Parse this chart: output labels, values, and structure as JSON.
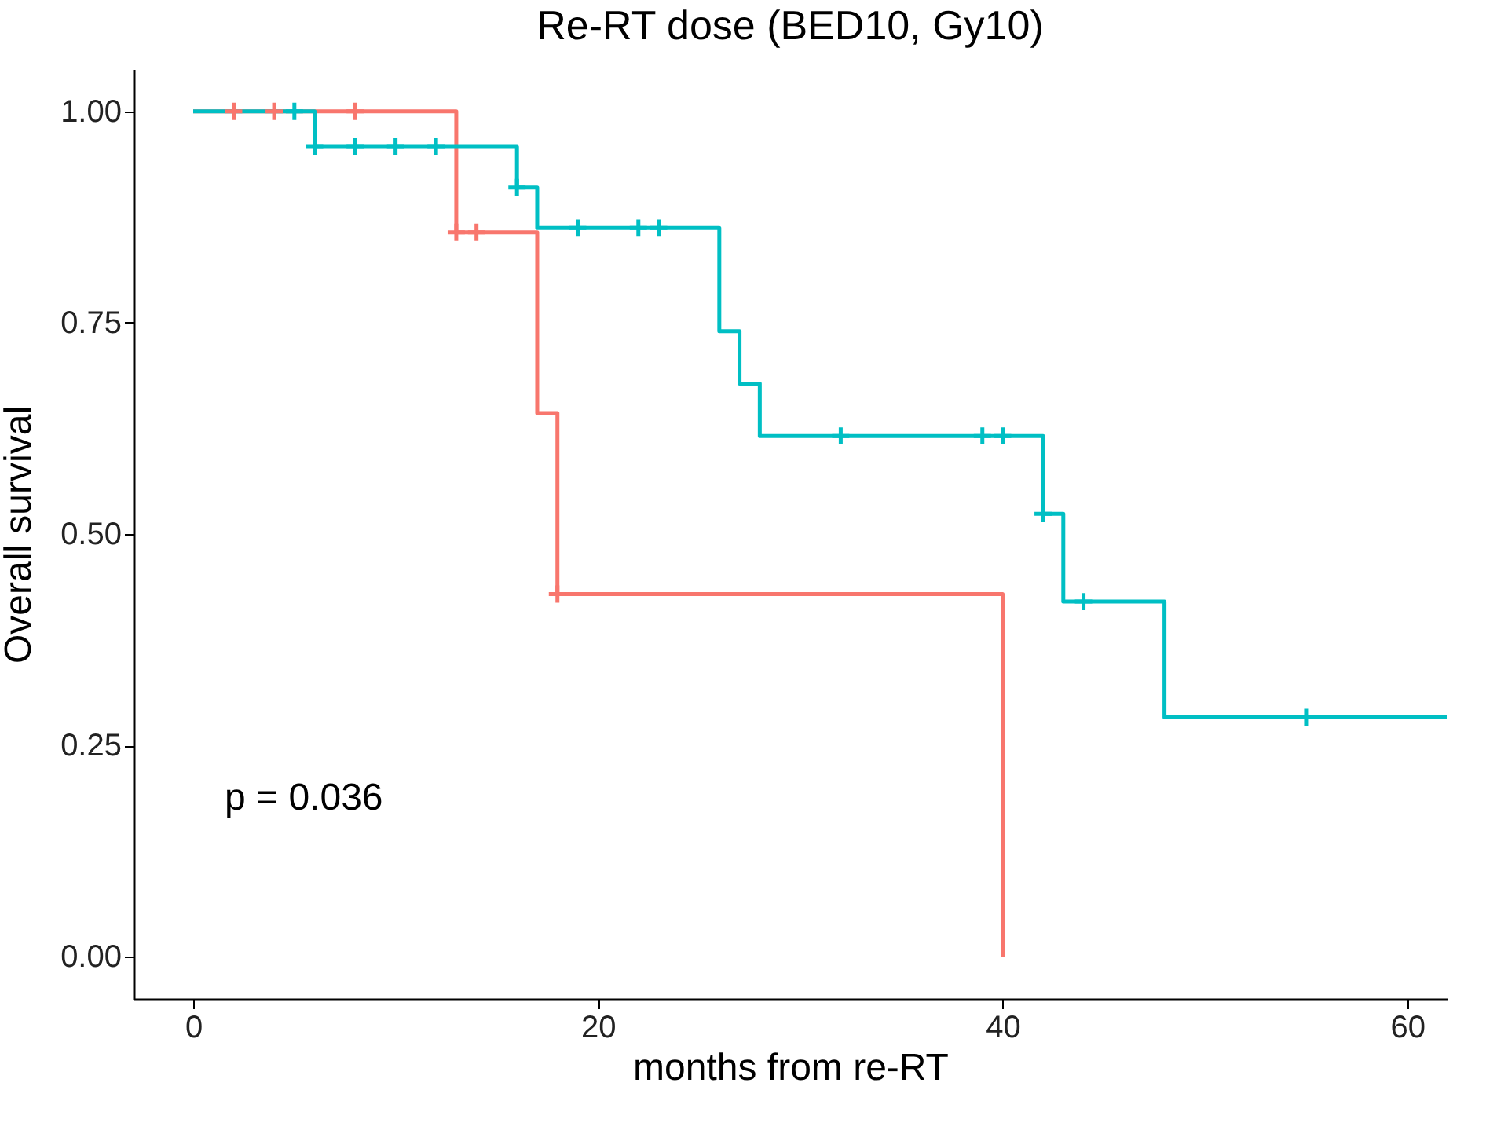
{
  "chart_data": {
    "type": "step",
    "title": "Re-RT dose (BED10, Gy10)",
    "xlabel": "months from re-RT",
    "ylabel": "Overall survival",
    "xlim": [
      -2.95,
      61.95
    ],
    "xticks": [
      0,
      20,
      40,
      60
    ],
    "ylim": [
      -0.05,
      1.05
    ],
    "yticks": [
      {
        "value": 0,
        "label": "0.00"
      },
      {
        "value": 0.25,
        "label": "0.25"
      },
      {
        "value": 0.5,
        "label": "0.50"
      },
      {
        "value": 0.75,
        "label": "0.75"
      },
      {
        "value": 1,
        "label": "1.00"
      }
    ],
    "series": [
      {
        "color": "#f8766d",
        "x": [
          0,
          13,
          17,
          18,
          40
        ],
        "values": [
          1,
          0.857,
          0.643,
          0.429,
          0
        ]
      },
      {
        "color": "#00bfc4",
        "x": [
          0,
          6,
          16,
          17,
          26,
          27,
          28,
          42,
          43,
          48,
          61.95
        ],
        "values": [
          1,
          0.958,
          0.91,
          0.862,
          0.74,
          0.678,
          0.616,
          0.524,
          0.42,
          0.283,
          0.283
        ]
      },
      {
        "type": "scatter",
        "marker": "cross",
        "color": "#f8766d",
        "x": [
          2,
          4,
          8,
          13,
          14,
          18
        ],
        "values": [
          1,
          1,
          1,
          0.857,
          0.857,
          0.429
        ]
      },
      {
        "type": "scatter",
        "marker": "cross",
        "color": "#00bfc4",
        "x": [
          5,
          6,
          8,
          10,
          12,
          16,
          19,
          22,
          23,
          32,
          39,
          40,
          42,
          44,
          55
        ],
        "values": [
          1,
          0.958,
          0.958,
          0.958,
          0.958,
          0.91,
          0.862,
          0.862,
          0.862,
          0.616,
          0.616,
          0.616,
          0.524,
          0.42,
          0.283
        ]
      }
    ],
    "annotations": [
      "p = 0.036"
    ]
  }
}
